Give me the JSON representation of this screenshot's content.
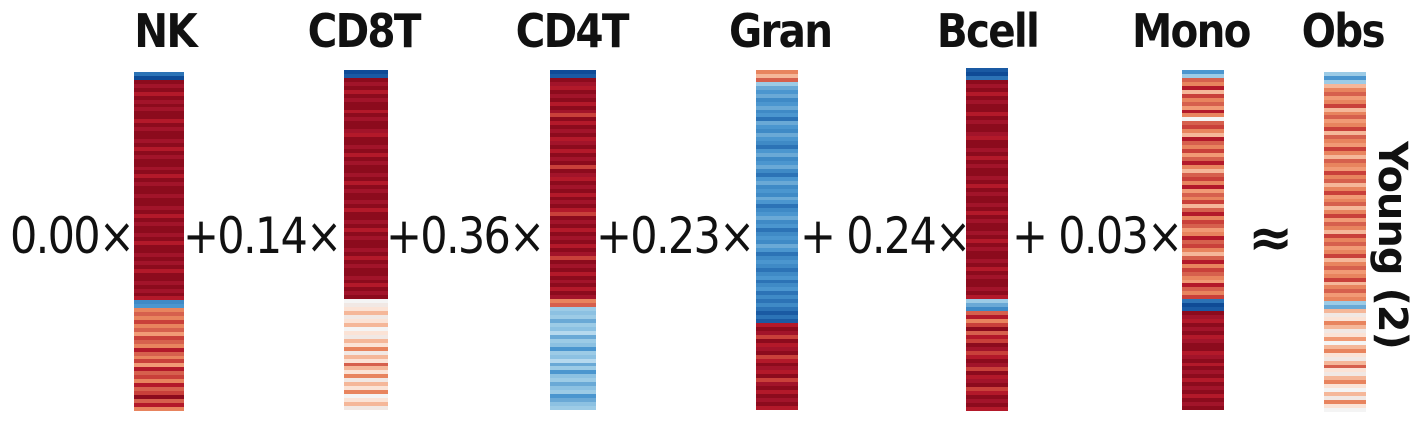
{
  "headers": {
    "nk": "NK",
    "cd8t": "CD8T",
    "cd4t": "CD4T",
    "gran": "Gran",
    "bcell": "Bcell",
    "mono": "Mono",
    "obs": "Obs"
  },
  "coefficients": {
    "nk": "0.00×",
    "cd8t": "+0.14×",
    "cd4t": "+0.36×",
    "gran": "+0.23×",
    "bcell": "+ 0.24×",
    "mono": "+ 0.03×"
  },
  "approx_symbol": "≈",
  "side_label": "Young (2)",
  "colors": {
    "dark_red": "#8c0b1d",
    "red": "#b3192a",
    "salmon": "#e8845e",
    "light_salmon": "#f5b799",
    "pale": "#f1e8e4",
    "light_blue": "#9ccbe6",
    "blue": "#3f8ac6",
    "dark_blue": "#0f4b96"
  },
  "bars": {
    "nk": [
      "#2c73b6",
      "#0f4b96",
      "#8c0b1d",
      "#a2142a",
      "#8c0b1d",
      "#b3192a",
      "#8c0b1d",
      "#a2142a",
      "#8c0b1d",
      "#a2142a",
      "#8c0b1d",
      "#8c0b1d",
      "#b3192a",
      "#8c0b1d",
      "#a2142a",
      "#8c0b1d",
      "#8c0b1d",
      "#a2142a",
      "#8c0b1d",
      "#b3192a",
      "#8c0b1d",
      "#a2142a",
      "#8c0b1d",
      "#8c0b1d",
      "#a2142a",
      "#8c0b1d",
      "#b3192a",
      "#8c0b1d",
      "#a2142a",
      "#8c0b1d",
      "#8c0b1d",
      "#a2142a",
      "#8c0b1d",
      "#8c0b1d",
      "#a2142a",
      "#8c0b1d",
      "#b3192a",
      "#8c0b1d",
      "#a2142a",
      "#8c0b1d",
      "#8c0b1d",
      "#a2142a",
      "#8c0b1d",
      "#b3192a",
      "#8c0b1d",
      "#8c0b1d",
      "#a2142a",
      "#8c0b1d",
      "#a2142a",
      "#8c0b1d",
      "#b3192a",
      "#8c0b1d",
      "#8c0b1d",
      "#a2142a",
      "#8c0b1d",
      "#a2142a",
      "#8c0b1d",
      "#b3192a",
      "#3f8ac6",
      "#4b96cf",
      "#e8845e",
      "#d6604d",
      "#e8845e",
      "#c9403a",
      "#e8845e",
      "#d6604d",
      "#f19a75",
      "#c9403a",
      "#d6604d",
      "#e8845e",
      "#b3192a",
      "#d6604d",
      "#e8845e",
      "#c9403a",
      "#f19a75",
      "#b3192a",
      "#d6604d",
      "#c9403a",
      "#e8845e",
      "#b3192a",
      "#d6604d",
      "#c9403a",
      "#8c0b1d",
      "#d6604d",
      "#b3192a",
      "#e8845e"
    ],
    "cd8t": [
      "#0f4b96",
      "#1a5aa3",
      "#8c0b1d",
      "#a2142a",
      "#8c0b1d",
      "#b3192a",
      "#8c0b1d",
      "#a2142a",
      "#8c0b1d",
      "#8c0b1d",
      "#b3192a",
      "#8c0b1d",
      "#a2142a",
      "#8c0b1d",
      "#8c0b1d",
      "#a2142a",
      "#b3192a",
      "#8c0b1d",
      "#8c0b1d",
      "#a2142a",
      "#8c0b1d",
      "#b3192a",
      "#8c0b1d",
      "#a2142a",
      "#8c0b1d",
      "#8c0b1d",
      "#a2142a",
      "#8c0b1d",
      "#b3192a",
      "#8c0b1d",
      "#a2142a",
      "#8c0b1d",
      "#8c0b1d",
      "#a2142a",
      "#8c0b1d",
      "#b3192a",
      "#8c0b1d",
      "#8c0b1d",
      "#a2142a",
      "#8c0b1d",
      "#b3192a",
      "#8c0b1d",
      "#a2142a",
      "#8c0b1d",
      "#8c0b1d",
      "#a2142a",
      "#8c0b1d",
      "#b3192a",
      "#8c0b1d",
      "#a2142a",
      "#8c0b1d",
      "#8c0b1d",
      "#a2142a",
      "#8c0b1d",
      "#b3192a",
      "#8c0b1d",
      "#a2142a",
      "#8c0b1d",
      "#f4f4f4",
      "#f1e8e4",
      "#fbe3d6",
      "#f5b799",
      "#f1e8e4",
      "#fbe3d6",
      "#f5b799",
      "#f4f4f4",
      "#fbe3d6",
      "#f1e8e4",
      "#f5b799",
      "#fbe3d6",
      "#e8845e",
      "#f1e8e4",
      "#f5b799",
      "#fbe3d6",
      "#d6604d",
      "#f5b799",
      "#fbe3d6",
      "#e8845e",
      "#f1e8e4",
      "#f5b799",
      "#fbe3d6",
      "#e8845e",
      "#f4f4f4",
      "#fbe3d6",
      "#f5b799",
      "#f1e8e4"
    ],
    "cd4t": [
      "#0f4b96",
      "#1a5aa3",
      "#8c0b1d",
      "#a2142a",
      "#b3192a",
      "#8c0b1d",
      "#a2142a",
      "#8c0b1d",
      "#b3192a",
      "#8c0b1d",
      "#a2142a",
      "#c9403a",
      "#8c0b1d",
      "#b3192a",
      "#8c0b1d",
      "#a2142a",
      "#8c0b1d",
      "#b3192a",
      "#a2142a",
      "#8c0b1d",
      "#b3192a",
      "#8c0b1d",
      "#a2142a",
      "#8c0b1d",
      "#c9403a",
      "#8c0b1d",
      "#a2142a",
      "#b3192a",
      "#8c0b1d",
      "#a2142a",
      "#8c0b1d",
      "#b3192a",
      "#8c0b1d",
      "#a2142a",
      "#8c0b1d",
      "#b3192a",
      "#c9403a",
      "#8c0b1d",
      "#a2142a",
      "#8c0b1d",
      "#b3192a",
      "#8c0b1d",
      "#a2142a",
      "#8c0b1d",
      "#b3192a",
      "#8c0b1d",
      "#a2142a",
      "#c9403a",
      "#8c0b1d",
      "#a2142a",
      "#8c0b1d",
      "#b3192a",
      "#8c0b1d",
      "#a2142a",
      "#8c0b1d",
      "#b3192a",
      "#8c0b1d",
      "#a2142a",
      "#e8845e",
      "#d6604d",
      "#9ccbe6",
      "#8cc1e2",
      "#9ccbe6",
      "#6aa9d6",
      "#9ccbe6",
      "#8cc1e2",
      "#b6d9ee",
      "#6aa9d6",
      "#9ccbe6",
      "#8cc1e2",
      "#4b96cf",
      "#9ccbe6",
      "#8cc1e2",
      "#b6d9ee",
      "#6aa9d6",
      "#9ccbe6",
      "#4b96cf",
      "#8cc1e2",
      "#9ccbe6",
      "#6aa9d6",
      "#8cc1e2",
      "#9ccbe6",
      "#4b96cf",
      "#6aa9d6",
      "#8cc1e2",
      "#9ccbe6"
    ],
    "gran": [
      "#e8845e",
      "#f5b799",
      "#d6604d",
      "#9ccbe6",
      "#6aa9d6",
      "#4b96cf",
      "#6aa9d6",
      "#3f8ac6",
      "#4b96cf",
      "#6aa9d6",
      "#3f8ac6",
      "#4b96cf",
      "#2c73b6",
      "#6aa9d6",
      "#4b96cf",
      "#3f8ac6",
      "#6aa9d6",
      "#4b96cf",
      "#3f8ac6",
      "#2c73b6",
      "#4b96cf",
      "#6aa9d6",
      "#3f8ac6",
      "#4b96cf",
      "#6aa9d6",
      "#3f8ac6",
      "#2c73b6",
      "#4b96cf",
      "#6aa9d6",
      "#3f8ac6",
      "#4b96cf",
      "#3f8ac6",
      "#6aa9d6",
      "#4b96cf",
      "#2c73b6",
      "#3f8ac6",
      "#4b96cf",
      "#6aa9d6",
      "#3f8ac6",
      "#4b96cf",
      "#2c73b6",
      "#3f8ac6",
      "#4b96cf",
      "#3f8ac6",
      "#6aa9d6",
      "#4b96cf",
      "#2c73b6",
      "#3f8ac6",
      "#4b96cf",
      "#3f8ac6",
      "#2c73b6",
      "#3f8ac6",
      "#4b96cf",
      "#2c73b6",
      "#3f8ac6",
      "#4b96cf",
      "#2c73b6",
      "#3f8ac6",
      "#2c73b6",
      "#3f8ac6",
      "#2c73b6",
      "#1a5aa3",
      "#2c73b6",
      "#1a5aa3",
      "#b3192a",
      "#8c0b1d",
      "#a2142a",
      "#c9403a",
      "#8c0b1d",
      "#b3192a",
      "#a2142a",
      "#8c0b1d",
      "#c9403a",
      "#b3192a",
      "#8c0b1d",
      "#a2142a",
      "#b3192a",
      "#8c0b1d",
      "#c9403a",
      "#a2142a",
      "#8c0b1d",
      "#b3192a",
      "#8c0b1d",
      "#a2142a",
      "#8c0b1d",
      "#b3192a"
    ],
    "bcell": [
      "#1a5aa3",
      "#0f4b96",
      "#2c73b6",
      "#8c0b1d",
      "#a2142a",
      "#8c0b1d",
      "#b3192a",
      "#8c0b1d",
      "#a2142a",
      "#8c0b1d",
      "#8c0b1d",
      "#b3192a",
      "#8c0b1d",
      "#a2142a",
      "#8c0b1d",
      "#8c0b1d",
      "#a2142a",
      "#b3192a",
      "#8c0b1d",
      "#8c0b1d",
      "#a2142a",
      "#8c0b1d",
      "#b3192a",
      "#8c0b1d",
      "#a2142a",
      "#8c0b1d",
      "#8c0b1d",
      "#a2142a",
      "#8c0b1d",
      "#b3192a",
      "#8c0b1d",
      "#a2142a",
      "#8c0b1d",
      "#8c0b1d",
      "#a2142a",
      "#8c0b1d",
      "#b3192a",
      "#8c0b1d",
      "#a2142a",
      "#8c0b1d",
      "#8c0b1d",
      "#a2142a",
      "#8c0b1d",
      "#b3192a",
      "#8c0b1d",
      "#a2142a",
      "#8c0b1d",
      "#8c0b1d",
      "#a2142a",
      "#8c0b1d",
      "#b3192a",
      "#8c0b1d",
      "#a2142a",
      "#8c0b1d",
      "#8c0b1d",
      "#a2142a",
      "#8c0b1d",
      "#b3192a",
      "#9ccbe6",
      "#6aa9d6",
      "#3f8ac6",
      "#d6604d",
      "#b3192a",
      "#e8845e",
      "#c9403a",
      "#8c0b1d",
      "#d6604d",
      "#b3192a",
      "#c9403a",
      "#8c0b1d",
      "#a2142a",
      "#c9403a",
      "#b3192a",
      "#8c0b1d",
      "#a2142a",
      "#c9403a",
      "#8c0b1d",
      "#b3192a",
      "#a2142a",
      "#8c0b1d",
      "#c9403a",
      "#b3192a",
      "#8c0b1d",
      "#a2142a",
      "#8c0b1d",
      "#b3192a"
    ],
    "mono": [
      "#4b96cf",
      "#9ccbe6",
      "#d6604d",
      "#e8845e",
      "#b3192a",
      "#f5b799",
      "#c9403a",
      "#e8845e",
      "#d6604d",
      "#f19a75",
      "#b3192a",
      "#e8845e",
      "#f4f4f4",
      "#d6604d",
      "#c9403a",
      "#e8845e",
      "#f5b799",
      "#b3192a",
      "#d6604d",
      "#e8845e",
      "#c9403a",
      "#f19a75",
      "#d6604d",
      "#b3192a",
      "#e8845e",
      "#f5b799",
      "#d6604d",
      "#c9403a",
      "#e8845e",
      "#b3192a",
      "#f19a75",
      "#d6604d",
      "#e8845e",
      "#c9403a",
      "#f5b799",
      "#d6604d",
      "#b3192a",
      "#e8845e",
      "#c9403a",
      "#d6604d",
      "#f19a75",
      "#e8845e",
      "#b3192a",
      "#d6604d",
      "#c9403a",
      "#e8845e",
      "#f5b799",
      "#d6604d",
      "#b3192a",
      "#e8845e",
      "#c9403a",
      "#d6604d",
      "#e8845e",
      "#f19a75",
      "#b3192a",
      "#d6604d",
      "#e8845e",
      "#c9403a",
      "#2c73b6",
      "#0f4b96",
      "#1a5aa3",
      "#8c0b1d",
      "#a2142a",
      "#b3192a",
      "#8c0b1d",
      "#a2142a",
      "#8c0b1d",
      "#b3192a",
      "#a2142a",
      "#8c0b1d",
      "#8c0b1d",
      "#b3192a",
      "#a2142a",
      "#8c0b1d",
      "#b3192a",
      "#8c0b1d",
      "#a2142a",
      "#8c0b1d",
      "#b3192a",
      "#8c0b1d",
      "#a2142a",
      "#8c0b1d",
      "#b3192a",
      "#8c0b1d",
      "#a2142a",
      "#8c0b1d"
    ],
    "obs": [
      "#9ccbe6",
      "#4b96cf",
      "#9ccbe6",
      "#f5b799",
      "#e8845e",
      "#d6604d",
      "#f19a75",
      "#e8845e",
      "#c9403a",
      "#f5b799",
      "#e8845e",
      "#d6604d",
      "#f19a75",
      "#e8845e",
      "#c9403a",
      "#f5b799",
      "#d6604d",
      "#e8845e",
      "#f19a75",
      "#c9403a",
      "#e8845e",
      "#f5b799",
      "#d6604d",
      "#e8845e",
      "#f19a75",
      "#c9403a",
      "#e8845e",
      "#d6604d",
      "#f5b799",
      "#e8845e",
      "#c9403a",
      "#f19a75",
      "#e8845e",
      "#d6604d",
      "#f5b799",
      "#e8845e",
      "#c9403a",
      "#f19a75",
      "#d6604d",
      "#e8845e",
      "#f5b799",
      "#c9403a",
      "#e8845e",
      "#d6604d",
      "#f19a75",
      "#e8845e",
      "#c9403a",
      "#f5b799",
      "#e8845e",
      "#d6604d",
      "#f19a75",
      "#e8845e",
      "#c9403a",
      "#f5b799",
      "#e8845e",
      "#d6604d",
      "#f19a75",
      "#e8845e",
      "#9ccbe6",
      "#6aa9d6",
      "#f5b799",
      "#f1e8e4",
      "#fbe3d6",
      "#e8845e",
      "#f5b799",
      "#f1e8e4",
      "#fbe3d6",
      "#f19a75",
      "#f4f4f4",
      "#f5b799",
      "#e8845e",
      "#fbe3d6",
      "#f1e8e4",
      "#f5b799",
      "#d6604d",
      "#fbe3d6",
      "#f1e8e4",
      "#f5b799",
      "#e8845e",
      "#fbe3d6",
      "#f4f4f4",
      "#f5b799",
      "#f1e8e4",
      "#e8845e",
      "#fbe3d6",
      "#f4f4f4"
    ]
  }
}
